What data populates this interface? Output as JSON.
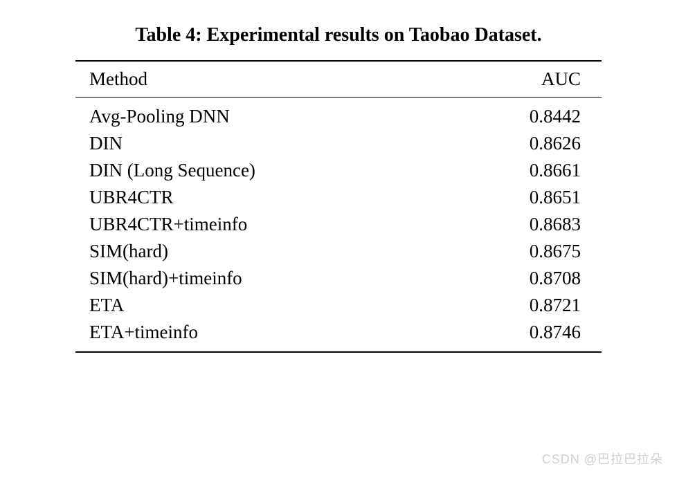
{
  "table": {
    "caption": "Table 4: Experimental results on Taobao Dataset.",
    "columns": [
      "Method",
      "AUC"
    ],
    "rows": [
      [
        "Avg-Pooling DNN",
        "0.8442"
      ],
      [
        "DIN",
        "0.8626"
      ],
      [
        "DIN (Long Sequence)",
        "0.8661"
      ],
      [
        "UBR4CTR",
        "0.8651"
      ],
      [
        "UBR4CTR+timeinfo",
        "0.8683"
      ],
      [
        "SIM(hard)",
        "0.8675"
      ],
      [
        "SIM(hard)+timeinfo",
        "0.8708"
      ],
      [
        "ETA",
        "0.8721"
      ],
      [
        "ETA+timeinfo",
        "0.8746"
      ]
    ],
    "caption_fontsize": 28,
    "body_fontsize": 27,
    "text_color": "#000000",
    "background_color": "#ffffff",
    "border_color": "#000000",
    "col_alignment": [
      "left",
      "right"
    ]
  },
  "watermark": {
    "text": "CSDN @巴拉巴拉朵",
    "color": "#d0d0d0",
    "fontsize": 18
  }
}
